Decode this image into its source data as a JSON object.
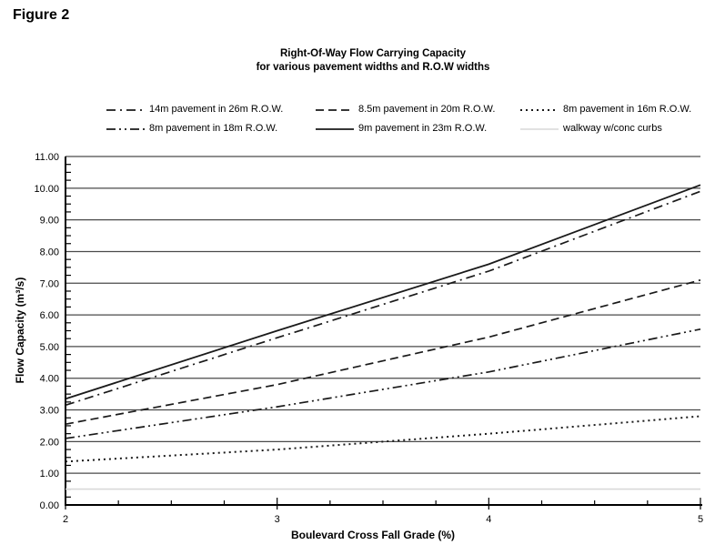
{
  "figure_label": "Figure 2",
  "chart_data": {
    "type": "line",
    "title_line1": "Right-Of-Way Flow Carrying Capacity",
    "title_line2": "for various pavement widths and R.O.W widths",
    "xlabel": "Boulevard Cross Fall Grade (%)",
    "ylabel": "Flow Capacity (m³/s)",
    "xlim": [
      2,
      5
    ],
    "ylim": [
      0,
      11
    ],
    "x_major_step": 1,
    "x_minor_step": 0.25,
    "y_major_step": 1,
    "y_minor_step": 0.25,
    "y_tick_decimals": 2,
    "grid": "horizontal-major",
    "legend_position": "top",
    "axis_color": "#000000",
    "gridline_color": "#4a4a4a",
    "series": [
      {
        "name": "14m pavement in 26m R.O.W.",
        "dash": "dashdot",
        "color": "#1a1a1a",
        "width": 1.7,
        "x": [
          2,
          3,
          4,
          5
        ],
        "y": [
          3.15,
          5.28,
          7.38,
          9.9
        ]
      },
      {
        "name": "8.5m pavement in 20m R.O.W.",
        "dash": "dashed",
        "color": "#1a1a1a",
        "width": 1.7,
        "x": [
          2,
          3,
          4,
          5
        ],
        "y": [
          2.55,
          3.8,
          5.3,
          7.1
        ]
      },
      {
        "name": "8m pavement in 16m R.O.W.",
        "dash": "dotted",
        "color": "#1a1a1a",
        "width": 2,
        "x": [
          2,
          3,
          4,
          5
        ],
        "y": [
          1.37,
          1.75,
          2.25,
          2.8
        ]
      },
      {
        "name": "8m pavement in 18m R.O.W.",
        "dash": "dashdotdot",
        "color": "#1a1a1a",
        "width": 1.7,
        "x": [
          2,
          3,
          4,
          5
        ],
        "y": [
          2.1,
          3.1,
          4.2,
          5.55
        ]
      },
      {
        "name": "9m pavement in 23m R.O.W.",
        "dash": "solid",
        "color": "#1a1a1a",
        "width": 1.8,
        "x": [
          2,
          3,
          4,
          5
        ],
        "y": [
          3.35,
          5.5,
          7.6,
          10.1
        ]
      },
      {
        "name": "walkway w/conc curbs",
        "dash": "solid",
        "color": "#d9d9d9",
        "width": 1.6,
        "x": [
          2,
          5
        ],
        "y": [
          0.5,
          0.5
        ]
      }
    ],
    "legend_row_order": [
      0,
      1,
      2,
      3,
      4,
      5
    ]
  }
}
